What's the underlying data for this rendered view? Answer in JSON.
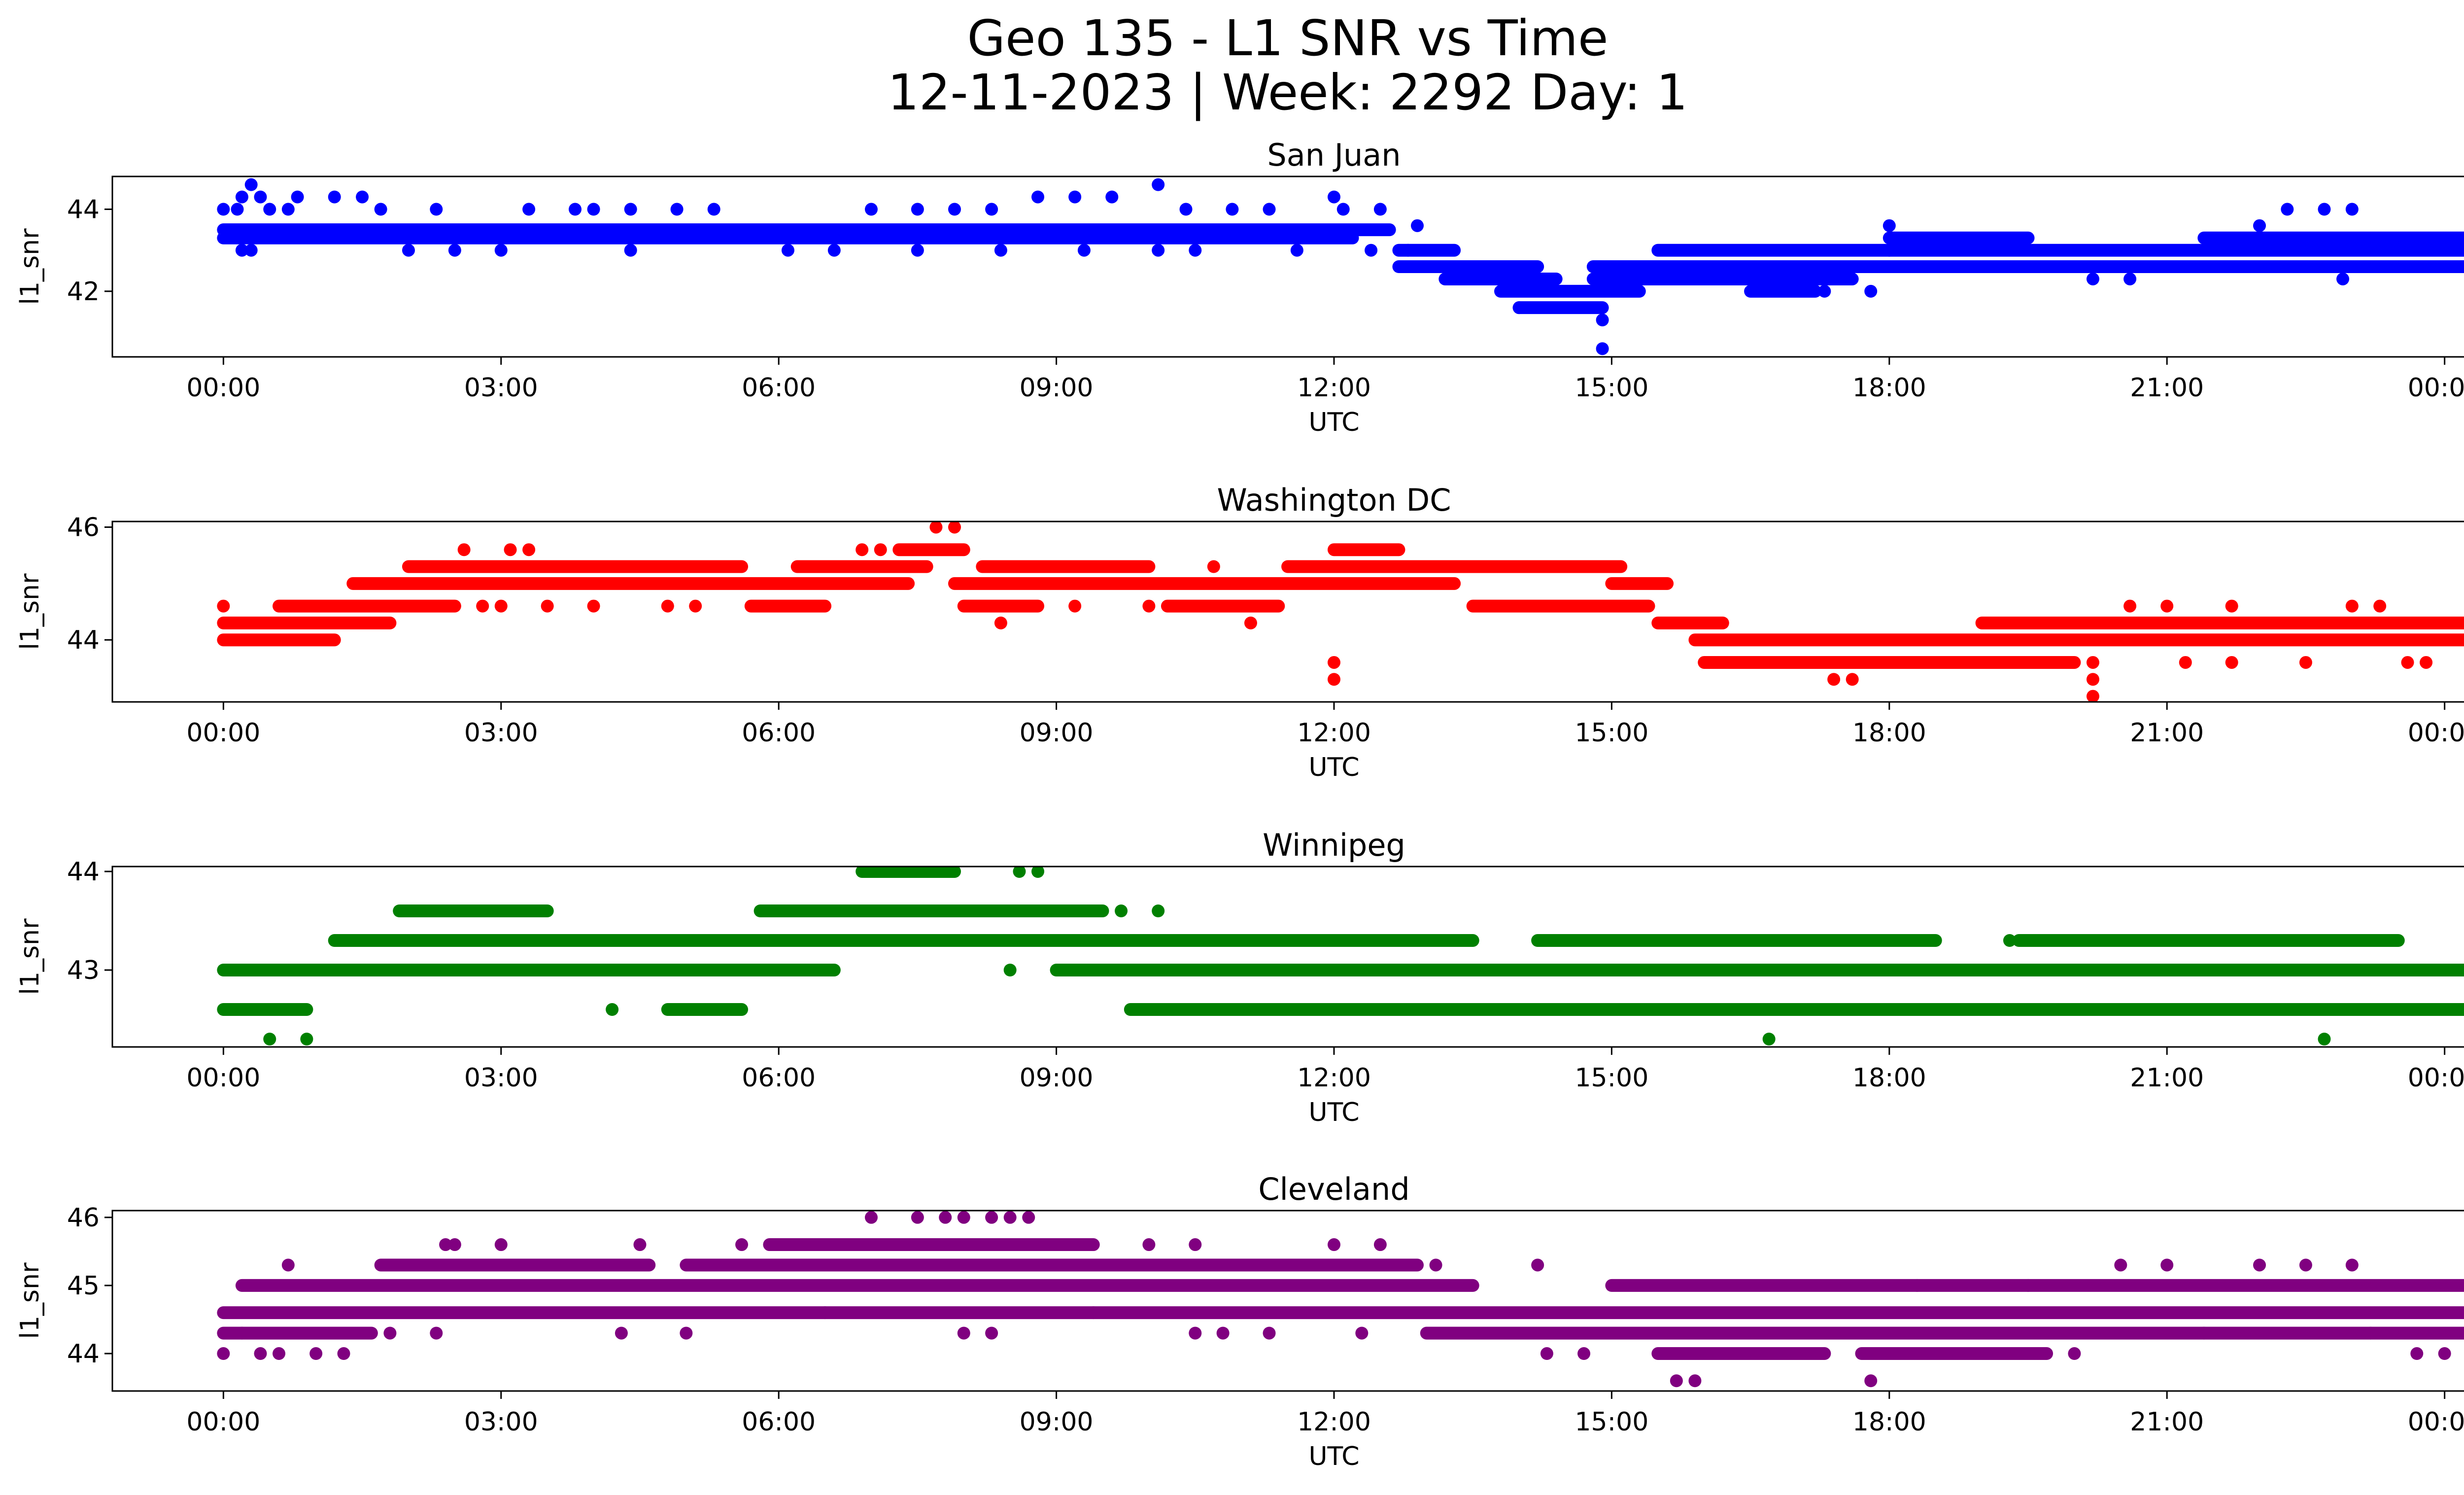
{
  "title_line1": "Geo 135 - L1 SNR vs Time",
  "title_line2": "12-11-2023 | Week: 2292 Day: 1",
  "x_tick_labels": [
    "00:00",
    "03:00",
    "06:00",
    "09:00",
    "12:00",
    "15:00",
    "18:00",
    "21:00",
    "00:00"
  ],
  "chart_data": [
    {
      "type": "scatter",
      "title": "San Juan",
      "xlabel": "UTC",
      "ylabel": "l1_snr",
      "color": "#0000ff",
      "x_unit": "hours UTC",
      "xlim": [
        -1.2,
        25.2
      ],
      "ylim": [
        40.4,
        44.8
      ],
      "yticks": [
        42,
        44
      ],
      "bands": [
        {
          "y": 43.3,
          "ranges": [
            [
              0,
              12.2
            ]
          ]
        },
        {
          "y": 43.5,
          "ranges": [
            [
              0,
              12.6
            ]
          ]
        },
        {
          "y": 43.0,
          "ranges": [
            [
              12.7,
              13.3
            ],
            [
              15.5,
              18.0
            ],
            [
              18.0,
              25.0
            ]
          ]
        },
        {
          "y": 42.6,
          "ranges": [
            [
              12.7,
              14.2
            ],
            [
              14.8,
              18.0
            ],
            [
              18.0,
              25.0
            ]
          ]
        },
        {
          "y": 42.3,
          "ranges": [
            [
              13.2,
              14.4
            ],
            [
              14.8,
              17.6
            ]
          ]
        },
        {
          "y": 42.0,
          "ranges": [
            [
              13.8,
              15.3
            ],
            [
              16.5,
              17.2
            ]
          ]
        },
        {
          "y": 41.6,
          "ranges": [
            [
              14.0,
              14.9
            ]
          ]
        },
        {
          "y": 43.3,
          "ranges": [
            [
              18.0,
              19.5
            ],
            [
              21.4,
              25.0
            ]
          ]
        }
      ],
      "points": [
        [
          0.0,
          44.0
        ],
        [
          0.15,
          44.0
        ],
        [
          0.2,
          44.3
        ],
        [
          0.3,
          44.6
        ],
        [
          0.4,
          44.3
        ],
        [
          0.5,
          44.0
        ],
        [
          0.7,
          44.0
        ],
        [
          0.8,
          44.3
        ],
        [
          1.2,
          44.3
        ],
        [
          1.5,
          44.3
        ],
        [
          1.7,
          44.0
        ],
        [
          2.3,
          44.0
        ],
        [
          0.2,
          43.0
        ],
        [
          0.3,
          43.0
        ],
        [
          2.0,
          43.0
        ],
        [
          2.5,
          43.0
        ],
        [
          3.0,
          43.0
        ],
        [
          3.3,
          44.0
        ],
        [
          3.8,
          44.0
        ],
        [
          4.0,
          44.0
        ],
        [
          4.4,
          44.0
        ],
        [
          4.9,
          44.0
        ],
        [
          5.3,
          44.0
        ],
        [
          4.4,
          43.0
        ],
        [
          6.1,
          43.0
        ],
        [
          6.6,
          43.0
        ],
        [
          7.0,
          44.0
        ],
        [
          7.5,
          44.0
        ],
        [
          7.9,
          44.0
        ],
        [
          8.3,
          44.0
        ],
        [
          7.5,
          43.0
        ],
        [
          8.4,
          43.0
        ],
        [
          8.8,
          44.3
        ],
        [
          9.2,
          44.3
        ],
        [
          9.6,
          44.3
        ],
        [
          10.1,
          44.6
        ],
        [
          10.4,
          44.0
        ],
        [
          10.9,
          44.0
        ],
        [
          11.3,
          44.0
        ],
        [
          9.3,
          43.0
        ],
        [
          10.1,
          43.0
        ],
        [
          10.5,
          43.0
        ],
        [
          11.6,
          43.0
        ],
        [
          12.0,
          44.3
        ],
        [
          12.1,
          44.0
        ],
        [
          12.5,
          44.0
        ],
        [
          12.9,
          43.6
        ],
        [
          12.4,
          43.0
        ],
        [
          12.8,
          43.0
        ],
        [
          14.0,
          41.6
        ],
        [
          14.9,
          41.3
        ],
        [
          14.9,
          40.6
        ],
        [
          15.2,
          42.6
        ],
        [
          17.3,
          42.0
        ],
        [
          17.8,
          42.0
        ],
        [
          18.0,
          43.6
        ],
        [
          20.2,
          42.3
        ],
        [
          20.6,
          42.3
        ],
        [
          22.0,
          43.6
        ],
        [
          22.3,
          44.0
        ],
        [
          22.7,
          44.0
        ],
        [
          23.0,
          44.0
        ],
        [
          22.9,
          42.3
        ],
        [
          23.6,
          42.6
        ]
      ]
    },
    {
      "type": "scatter",
      "title": "Washington DC",
      "xlabel": "UTC",
      "ylabel": "l1_snr",
      "color": "#ff0000",
      "x_unit": "hours UTC",
      "xlim": [
        -1.2,
        25.2
      ],
      "ylim": [
        42.9,
        46.1
      ],
      "yticks": [
        44,
        46
      ],
      "bands": [
        {
          "y": 44.3,
          "ranges": [
            [
              0,
              1.8
            ]
          ]
        },
        {
          "y": 44.0,
          "ranges": [
            [
              0,
              1.2
            ]
          ]
        },
        {
          "y": 44.6,
          "ranges": [
            [
              0.6,
              2.5
            ],
            [
              5.7,
              6.5
            ],
            [
              8.0,
              8.8
            ],
            [
              10.2,
              11.4
            ],
            [
              13.5,
              15.4
            ]
          ]
        },
        {
          "y": 45.0,
          "ranges": [
            [
              1.4,
              7.4
            ],
            [
              7.9,
              13.3
            ],
            [
              15.0,
              15.6
            ]
          ]
        },
        {
          "y": 45.3,
          "ranges": [
            [
              2.0,
              5.6
            ],
            [
              6.2,
              7.6
            ],
            [
              8.2,
              10.0
            ],
            [
              11.5,
              15.1
            ]
          ]
        },
        {
          "y": 45.6,
          "ranges": [
            [
              7.3,
              8.0
            ],
            [
              12.0,
              12.7
            ]
          ]
        },
        {
          "y": 44.3,
          "ranges": [
            [
              15.5,
              16.2
            ],
            [
              19.0,
              25.0
            ]
          ]
        },
        {
          "y": 44.0,
          "ranges": [
            [
              15.9,
              25.0
            ]
          ]
        },
        {
          "y": 43.6,
          "ranges": [
            [
              16.0,
              20.0
            ]
          ]
        }
      ],
      "points": [
        [
          0.0,
          44.6
        ],
        [
          2.6,
          45.6
        ],
        [
          3.1,
          45.6
        ],
        [
          3.3,
          45.6
        ],
        [
          2.8,
          44.6
        ],
        [
          3.0,
          44.6
        ],
        [
          3.5,
          44.6
        ],
        [
          4.0,
          44.6
        ],
        [
          4.8,
          44.6
        ],
        [
          5.1,
          44.6
        ],
        [
          6.9,
          45.6
        ],
        [
          7.1,
          45.6
        ],
        [
          7.7,
          46.0
        ],
        [
          7.9,
          46.0
        ],
        [
          8.4,
          44.3
        ],
        [
          9.2,
          44.6
        ],
        [
          10.0,
          44.6
        ],
        [
          10.7,
          45.3
        ],
        [
          11.1,
          44.3
        ],
        [
          12.0,
          43.6
        ],
        [
          12.0,
          43.3
        ],
        [
          17.4,
          43.3
        ],
        [
          17.6,
          43.3
        ],
        [
          20.2,
          43.6
        ],
        [
          20.2,
          43.3
        ],
        [
          20.2,
          43.0
        ],
        [
          20.6,
          44.6
        ],
        [
          21.0,
          44.6
        ],
        [
          21.2,
          43.6
        ],
        [
          21.7,
          43.6
        ],
        [
          21.7,
          44.6
        ],
        [
          22.5,
          43.6
        ],
        [
          23.0,
          44.6
        ],
        [
          23.3,
          44.6
        ],
        [
          23.6,
          43.6
        ],
        [
          23.8,
          43.6
        ]
      ]
    },
    {
      "type": "scatter",
      "title": "Winnipeg",
      "xlabel": "UTC",
      "ylabel": "l1_snr",
      "color": "#008000",
      "x_unit": "hours UTC",
      "xlim": [
        -1.2,
        25.2
      ],
      "ylim": [
        42.22,
        44.05
      ],
      "yticks": [
        43,
        44
      ],
      "bands": [
        {
          "y": 43.0,
          "ranges": [
            [
              0,
              6.6
            ],
            [
              9.0,
              25.0
            ]
          ]
        },
        {
          "y": 42.6,
          "ranges": [
            [
              0,
              0.9
            ],
            [
              4.8,
              5.6
            ],
            [
              9.8,
              25.0
            ]
          ]
        },
        {
          "y": 43.3,
          "ranges": [
            [
              1.2,
              13.5
            ],
            [
              14.2,
              18.5
            ],
            [
              19.4,
              23.5
            ]
          ]
        },
        {
          "y": 43.6,
          "ranges": [
            [
              1.9,
              3.5
            ],
            [
              5.8,
              9.5
            ]
          ]
        },
        {
          "y": 44.0,
          "ranges": [
            [
              6.9,
              7.9
            ]
          ]
        }
      ],
      "points": [
        [
          0.5,
          42.3
        ],
        [
          0.9,
          42.3
        ],
        [
          4.2,
          42.6
        ],
        [
          8.5,
          43.0
        ],
        [
          8.6,
          44.0
        ],
        [
          8.8,
          44.0
        ],
        [
          9.7,
          43.6
        ],
        [
          10.1,
          43.6
        ],
        [
          16.7,
          42.3
        ],
        [
          19.3,
          43.3
        ],
        [
          22.7,
          42.3
        ],
        [
          23.0,
          43.3
        ]
      ]
    },
    {
      "type": "scatter",
      "title": "Cleveland",
      "xlabel": "UTC",
      "ylabel": "l1_snr",
      "color": "#800080",
      "x_unit": "hours UTC",
      "xlim": [
        -1.2,
        25.2
      ],
      "ylim": [
        43.45,
        46.1
      ],
      "yticks": [
        44,
        45,
        46
      ],
      "bands": [
        {
          "y": 44.6,
          "ranges": [
            [
              0,
              25.0
            ]
          ]
        },
        {
          "y": 44.3,
          "ranges": [
            [
              0,
              1.6
            ],
            [
              13.0,
              24.5
            ]
          ]
        },
        {
          "y": 45.0,
          "ranges": [
            [
              0.2,
              13.5
            ],
            [
              15.0,
              25.0
            ]
          ]
        },
        {
          "y": 45.3,
          "ranges": [
            [
              1.7,
              4.6
            ],
            [
              5.0,
              12.9
            ]
          ]
        },
        {
          "y": 45.6,
          "ranges": [
            [
              5.9,
              9.4
            ]
          ]
        },
        {
          "y": 44.0,
          "ranges": [
            [
              15.5,
              17.3
            ],
            [
              17.7,
              19.7
            ]
          ]
        }
      ],
      "points": [
        [
          0.0,
          44.0
        ],
        [
          0.2,
          44.3
        ],
        [
          0.4,
          44.0
        ],
        [
          0.6,
          44.0
        ],
        [
          0.7,
          45.3
        ],
        [
          1.0,
          44.0
        ],
        [
          1.3,
          44.0
        ],
        [
          1.8,
          44.3
        ],
        [
          2.3,
          44.3
        ],
        [
          2.4,
          45.6
        ],
        [
          2.5,
          45.6
        ],
        [
          3.0,
          45.6
        ],
        [
          4.3,
          44.3
        ],
        [
          4.5,
          45.6
        ],
        [
          5.0,
          44.3
        ],
        [
          5.6,
          45.6
        ],
        [
          6.5,
          44.6
        ],
        [
          7.0,
          46.0
        ],
        [
          7.5,
          46.0
        ],
        [
          7.8,
          46.0
        ],
        [
          8.0,
          46.0
        ],
        [
          8.3,
          46.0
        ],
        [
          8.5,
          46.0
        ],
        [
          8.7,
          46.0
        ],
        [
          8.0,
          44.3
        ],
        [
          8.3,
          44.3
        ],
        [
          9.4,
          44.6
        ],
        [
          10.0,
          45.6
        ],
        [
          10.5,
          45.6
        ],
        [
          10.5,
          44.3
        ],
        [
          10.8,
          44.3
        ],
        [
          11.3,
          44.3
        ],
        [
          12.0,
          45.6
        ],
        [
          12.5,
          45.6
        ],
        [
          12.3,
          44.3
        ],
        [
          13.1,
          45.3
        ],
        [
          14.2,
          45.3
        ],
        [
          14.3,
          44.0
        ],
        [
          14.7,
          44.0
        ],
        [
          15.7,
          43.6
        ],
        [
          15.9,
          43.6
        ],
        [
          17.8,
          43.6
        ],
        [
          18.3,
          45.0
        ],
        [
          19.5,
          45.0
        ],
        [
          20.0,
          44.0
        ],
        [
          20.5,
          45.3
        ],
        [
          21.0,
          45.3
        ],
        [
          21.4,
          44.3
        ],
        [
          22.0,
          45.3
        ],
        [
          22.5,
          45.3
        ],
        [
          23.0,
          45.3
        ],
        [
          23.2,
          44.3
        ],
        [
          23.7,
          44.0
        ],
        [
          24.0,
          44.0
        ]
      ]
    }
  ]
}
